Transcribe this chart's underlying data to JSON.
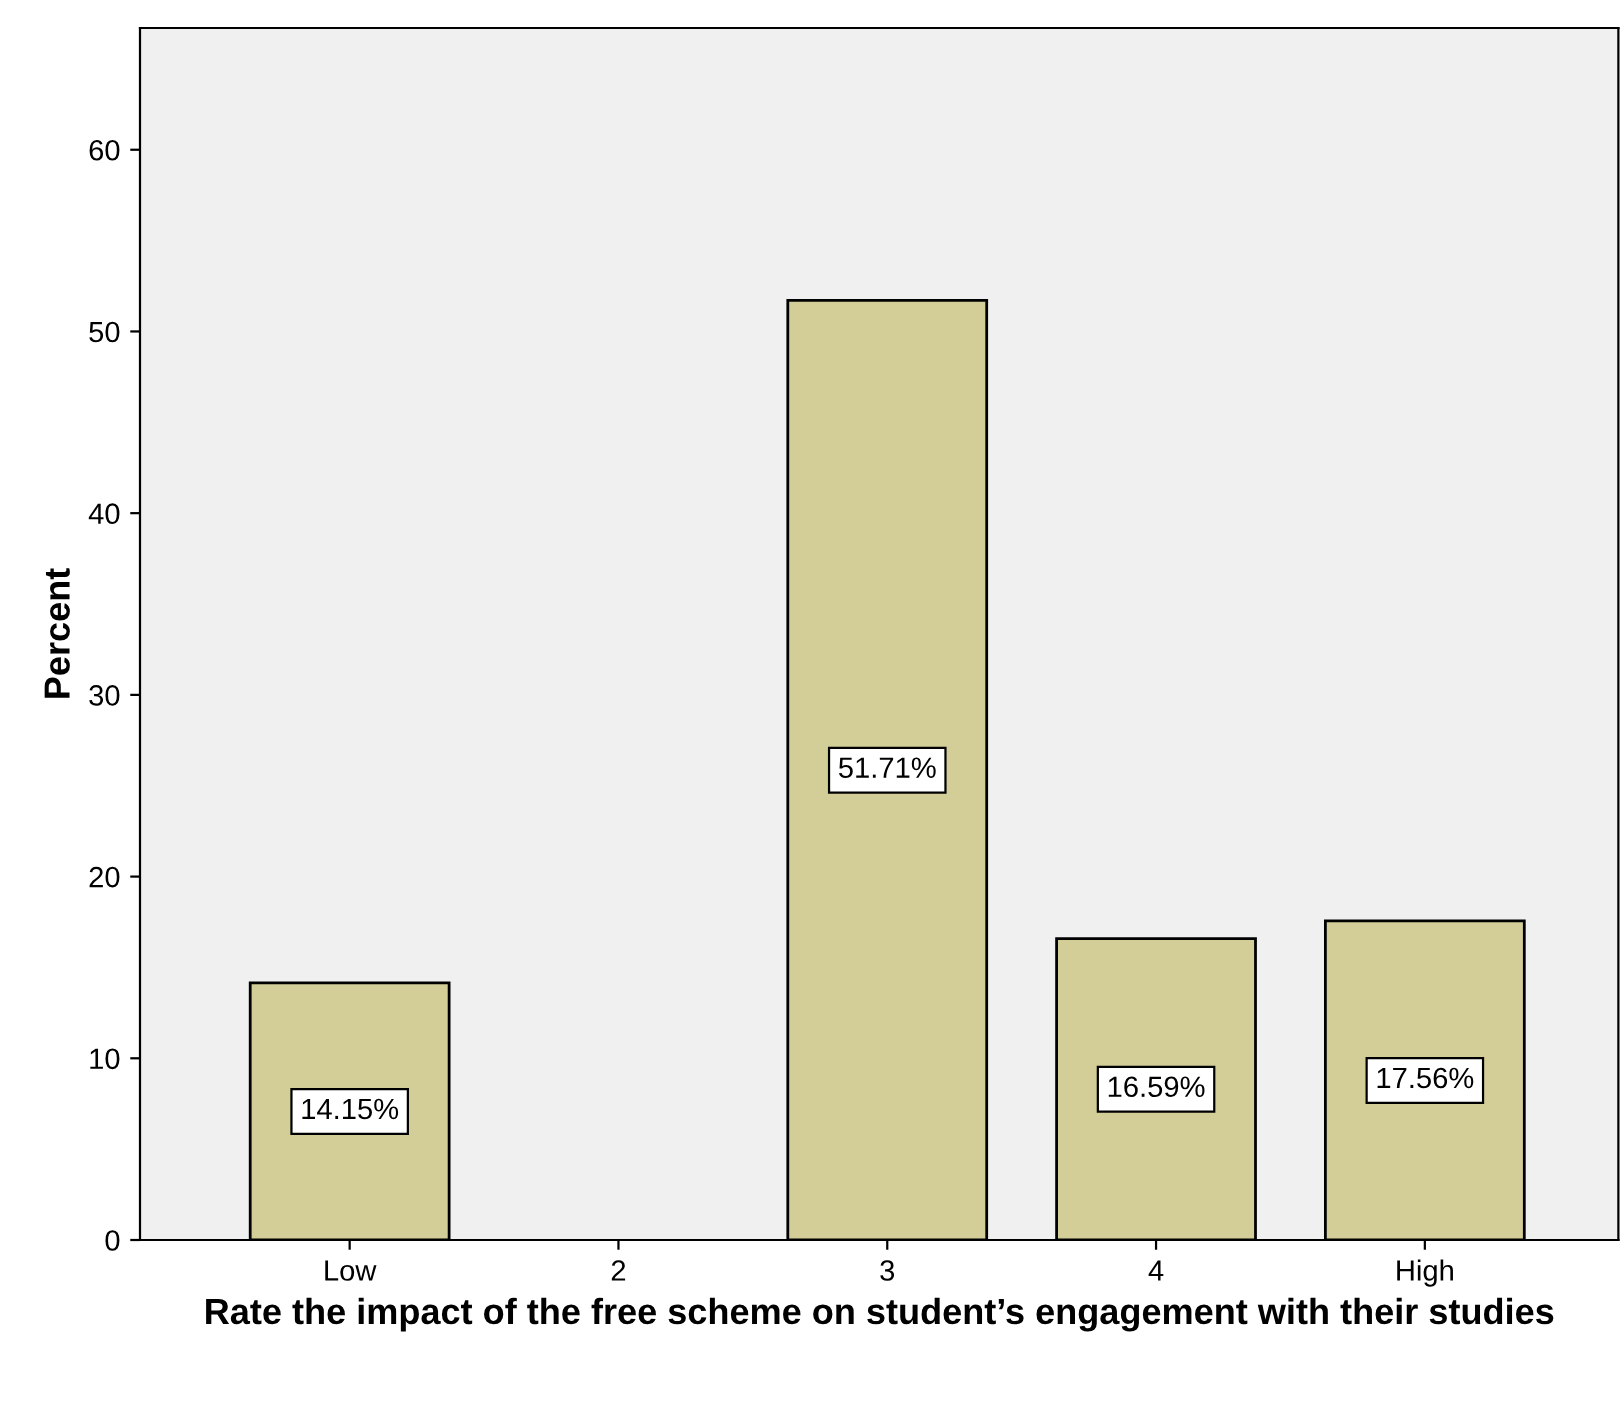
{
  "chart_data": {
    "type": "bar",
    "xlabel": "Rate the impact of the free scheme on student’s engagement with their studies",
    "ylabel": "Percent",
    "categories": [
      "Low",
      "2",
      "3",
      "4",
      "High"
    ],
    "values": [
      14.15,
      null,
      51.71,
      16.59,
      17.56
    ],
    "value_labels": [
      "14.15%",
      null,
      "51.71%",
      "16.59%",
      "17.56%"
    ],
    "color": "#d3ce97",
    "ylim": [
      0,
      66.7
    ],
    "yticks": [
      0,
      10,
      20,
      30,
      40,
      50,
      60
    ],
    "grid": false,
    "legend": false
  }
}
